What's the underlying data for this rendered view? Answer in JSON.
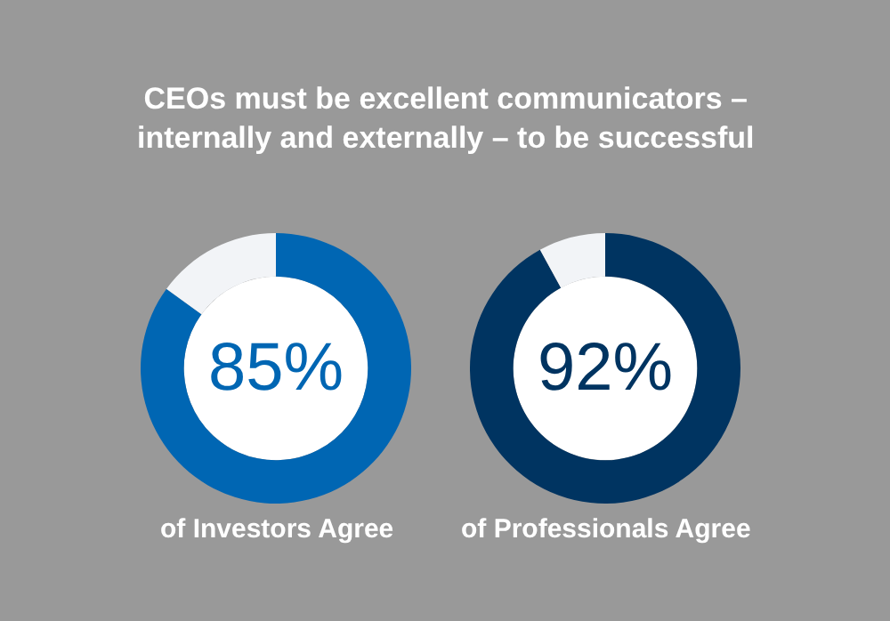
{
  "chart_data": [
    {
      "type": "donut",
      "title": "CEOs must be excellent communicators –\ninternally and externally – to be successful",
      "categories": [
        null,
        null
      ],
      "values": [
        85,
        15
      ],
      "colors": [
        "#0066b3",
        "#f2f4f7"
      ],
      "value_labels": [
        "85%",
        null
      ],
      "annotations": [
        "of Investors Agree"
      ]
    },
    {
      "type": "donut",
      "categories": [
        null,
        null
      ],
      "values": [
        92,
        8
      ],
      "colors": [
        "#003461",
        "#f2f4f7"
      ],
      "value_labels": [
        "92%",
        null
      ],
      "annotations": [
        "of Professionals Agree"
      ]
    }
  ]
}
